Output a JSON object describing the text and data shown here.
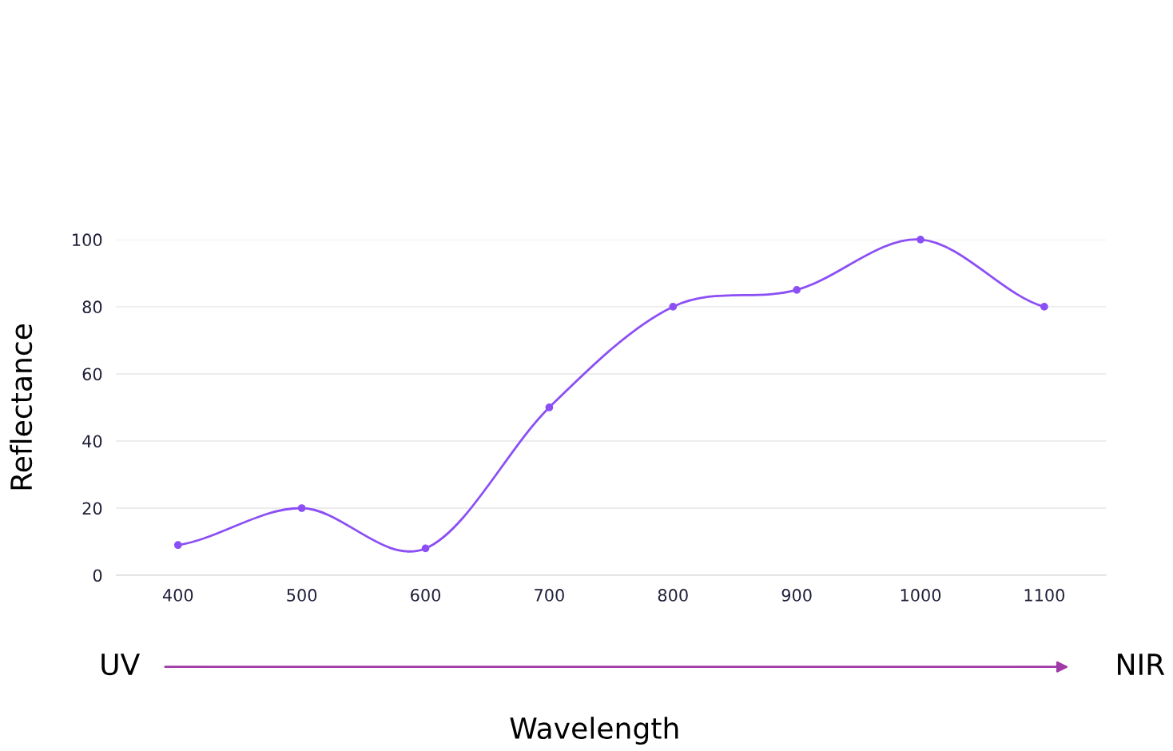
{
  "chart_data": {
    "type": "line",
    "categories": [
      "400",
      "500",
      "600",
      "700",
      "800",
      "900",
      "1000",
      "1100"
    ],
    "series": [
      {
        "color": "#8b4ff5",
        "values": [
          9,
          20,
          8,
          50,
          80,
          85,
          100,
          80
        ]
      }
    ],
    "xlabel": "Wavelength",
    "ylabel": "Reflectance",
    "ylim": [
      0,
      100
    ],
    "yticks": [
      0,
      20,
      40,
      60,
      80,
      100
    ],
    "grid": "y",
    "marker": "circle",
    "line_style": "solid",
    "legend": false,
    "annotations": [
      "UV",
      "NIR"
    ]
  }
}
